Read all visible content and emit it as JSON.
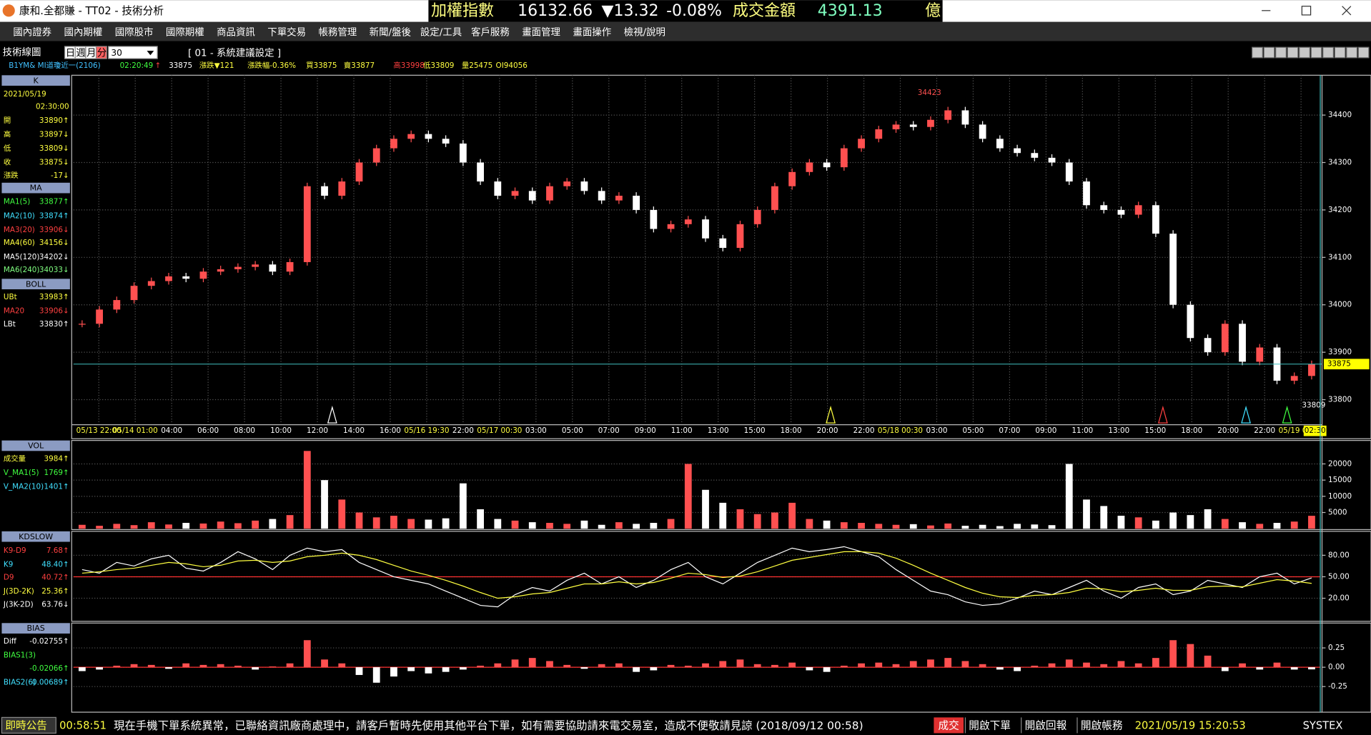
{
  "window": {
    "title": "康和.全都賺 - TT02 - 技術分析"
  },
  "ticker": {
    "name": "加權指數",
    "index": "16132.66",
    "change": "▼13.32",
    "pct": "-0.08%",
    "turnover_label": "成交金額",
    "turnover": "4391.13",
    "unit": "億"
  },
  "menu": [
    "國內證券",
    "國內期權",
    "國際股市",
    "國際期權",
    "商品資訊",
    "下單交易",
    "帳務管理",
    "新聞/盤後",
    "設定/工具",
    "客戶服務",
    "畫面管理",
    "畫面操作",
    "檢視/說明"
  ],
  "toolbar": {
    "title": "技術線圖",
    "periods": [
      "日",
      "週",
      "月",
      "分"
    ],
    "interval": "30",
    "setting": "[ 01 - 系統建議設定 ]"
  },
  "quote": [
    {
      "text": "B1YM&  MI道瓊近一(2106)",
      "color": "#40c0ff"
    },
    {
      "text": "02:20:49",
      "color": "#40ff40"
    },
    {
      "text": "↑",
      "color": "#ff4040"
    },
    {
      "text": "33875",
      "color": "#ffffff"
    },
    {
      "text": "漲跌▼121",
      "color": "#ffff40"
    },
    {
      "text": "漲跌幅-0.36%",
      "color": "#ffff40"
    },
    {
      "text": "買33875",
      "color": "#ffff40"
    },
    {
      "text": "賣33877",
      "color": "#ffff40"
    },
    {
      "text": "高33998",
      "color": "#ff4040"
    },
    {
      "text": "低33809",
      "color": "#ffff40"
    },
    {
      "text": "量25475",
      "color": "#ffff40"
    },
    {
      "text": "OI94056",
      "color": "#ffff40"
    }
  ],
  "panels": [
    {
      "title": "K",
      "rows": [
        {
          "label": "2021/05/19",
          "value": "",
          "color": "#ffff40"
        },
        {
          "label": "",
          "value": "02:30:00",
          "color": "#ffff40"
        },
        {
          "label": "開",
          "value": "33890↑",
          "color": "#ffff40"
        },
        {
          "label": "高",
          "value": "33897↓",
          "color": "#ffff40"
        },
        {
          "label": "低",
          "value": "33809↓",
          "color": "#ffff40"
        },
        {
          "label": "收",
          "value": "33875↓",
          "color": "#ffff40"
        },
        {
          "label": "漲跌",
          "value": "-17↓",
          "color": "#ffff40"
        }
      ]
    },
    {
      "title": "MA",
      "rows": [
        {
          "label": "MA1(5)",
          "value": "33877↑",
          "color": "#40ff40"
        },
        {
          "label": "MA2(10)",
          "value": "33874↑",
          "color": "#40e0ff"
        },
        {
          "label": "MA3(20)",
          "value": "33906↓",
          "color": "#ff4040"
        },
        {
          "label": "MA4(60)",
          "value": "34156↓",
          "color": "#ffff40"
        },
        {
          "label": "MA5(120)",
          "value": "34202↓",
          "color": "#ffffff"
        },
        {
          "label": "MA6(240)",
          "value": "34033↓",
          "color": "#80ff80"
        }
      ]
    },
    {
      "title": "BOLL",
      "rows": [
        {
          "label": "UBt",
          "value": "33983↑",
          "color": "#ffff40"
        },
        {
          "label": "MA20",
          "value": "33906↓",
          "color": "#ff4040"
        },
        {
          "label": "LBt",
          "value": "33830↑",
          "color": "#ffffff"
        }
      ]
    },
    {
      "title": "VOL",
      "rows": [
        {
          "label": "成交量",
          "value": "3984↑",
          "color": "#ffff40"
        },
        {
          "label": "V_MA1(5)",
          "value": "1769↑",
          "color": "#40ff40"
        },
        {
          "label": "V_MA2(10)",
          "value": "1401↑",
          "color": "#40e0ff"
        }
      ]
    },
    {
      "title": "KDSLOW",
      "rows": [
        {
          "label": "K9-D9",
          "value": "7.68↑",
          "color": "#ff4040"
        },
        {
          "label": "K9",
          "value": "48.40↑",
          "color": "#40e0ff"
        },
        {
          "label": "D9",
          "value": "40.72↑",
          "color": "#ff4040"
        },
        {
          "label": "J(3D-2K)",
          "value": "25.36↑",
          "color": "#ffff40"
        },
        {
          "label": "J(3K-2D)",
          "value": "63.76↓",
          "color": "#ffffff"
        }
      ]
    },
    {
      "title": "BIAS",
      "rows": [
        {
          "label": "Diff",
          "value": "-0.02755↑",
          "color": "#ffffff"
        },
        {
          "label": "BIAS1(3)",
          "value": "",
          "color": "#40ff40"
        },
        {
          "label": "",
          "value": "-0.02066↑",
          "color": "#40ff40"
        },
        {
          "label": "BIAS2(6)",
          "value": "0.00689↑",
          "color": "#40e0ff"
        }
      ]
    }
  ],
  "price_chart": {
    "ylim": [
      33749,
      34484
    ],
    "yticks": [
      33800,
      33900,
      34000,
      34100,
      34200,
      34300,
      34400
    ],
    "x_labels": [
      "05/13 22:00",
      "05/14 01:00",
      "04:00",
      "06:00",
      "08:00",
      "10:00",
      "12:00",
      "14:00",
      "16:00",
      "05/16 19:30",
      "22:00",
      "05/17 00:30",
      "03:00",
      "05:00",
      "07:00",
      "09:00",
      "11:00",
      "13:00",
      "15:00",
      "18:00",
      "20:00",
      "22:00",
      "05/18 00:30",
      "03:00",
      "05:00",
      "07:00",
      "09:00",
      "11:00",
      "13:00",
      "15:00",
      "18:00",
      "20:00",
      "22:00",
      "05/19 00:30"
    ],
    "closes": [
      33960,
      33990,
      34010,
      34040,
      34050,
      34060,
      34055,
      34070,
      34075,
      34080,
      34085,
      34070,
      34090,
      34250,
      34230,
      34260,
      34300,
      34330,
      34350,
      34360,
      34350,
      34340,
      34300,
      34260,
      34230,
      34240,
      34220,
      34250,
      34260,
      34240,
      34220,
      34230,
      34200,
      34160,
      34170,
      34180,
      34140,
      34120,
      34170,
      34200,
      34250,
      34280,
      34300,
      34290,
      34330,
      34350,
      34370,
      34380,
      34375,
      34390,
      34410,
      34380,
      34350,
      34330,
      34320,
      34310,
      34300,
      34260,
      34210,
      34200,
      34190,
      34210,
      34150,
      34000,
      33930,
      33900,
      33960,
      33880,
      33910,
      33840,
      33850,
      33875
    ],
    "high_label": "34423",
    "low_label": "33809",
    "last_price": "33875",
    "last_time": "02:30"
  },
  "volume_chart": {
    "ylim": [
      0,
      26700
    ],
    "yticks": [
      5000,
      10000,
      15000,
      20000
    ],
    "values": [
      1200,
      900,
      1500,
      1100,
      2000,
      1300,
      1800,
      1600,
      2200,
      1700,
      2500,
      3000,
      4200,
      24000,
      15000,
      9000,
      5000,
      3500,
      4000,
      3000,
      2800,
      3200,
      14000,
      6000,
      3000,
      2500,
      2000,
      1800,
      1500,
      2500,
      1200,
      2000,
      1500,
      1800,
      3000,
      20000,
      12000,
      8000,
      6000,
      4500,
      5000,
      8000,
      3000,
      2500,
      2000,
      1800,
      1500,
      1200,
      1400,
      1000,
      1600,
      900,
      1200,
      800,
      1500,
      1300,
      1100,
      20000,
      9000,
      7000,
      4000,
      3500,
      2500,
      5000,
      4200,
      6000,
      3000,
      2000,
      1500,
      1800,
      2200,
      3984
    ]
  },
  "kd_chart": {
    "ylim": [
      -11,
      111
    ],
    "yticks": [
      {
        "value": 20,
        "label": "20.00"
      },
      {
        "value": 50,
        "label": "50.00"
      },
      {
        "value": 80,
        "label": "80.00"
      }
    ],
    "k": [
      60,
      55,
      70,
      65,
      75,
      80,
      62,
      58,
      70,
      85,
      75,
      60,
      80,
      90,
      85,
      88,
      70,
      60,
      50,
      45,
      40,
      30,
      20,
      10,
      8,
      25,
      35,
      30,
      45,
      55,
      40,
      50,
      35,
      45,
      60,
      70,
      50,
      40,
      55,
      70,
      80,
      90,
      85,
      88,
      92,
      85,
      78,
      60,
      45,
      30,
      25,
      15,
      10,
      12,
      20,
      30,
      25,
      35,
      45,
      30,
      20,
      35,
      40,
      25,
      30,
      45,
      40,
      35,
      50,
      55,
      40,
      48.4
    ],
    "d": [
      55,
      57,
      60,
      62,
      66,
      70,
      68,
      64,
      66,
      72,
      73,
      70,
      72,
      78,
      80,
      83,
      80,
      74,
      66,
      58,
      52,
      45,
      37,
      28,
      20,
      22,
      26,
      28,
      34,
      40,
      40,
      43,
      40,
      42,
      48,
      55,
      53,
      49,
      51,
      57,
      65,
      73,
      77,
      81,
      85,
      85,
      83,
      76,
      66,
      55,
      45,
      35,
      27,
      22,
      21,
      24,
      25,
      28,
      34,
      33,
      29,
      31,
      34,
      31,
      31,
      36,
      37,
      36,
      41,
      46,
      44,
      40.72
    ]
  },
  "bias_chart": {
    "ylim": [
      -0.57,
      0.56
    ],
    "yticks": [
      -0.25,
      {
        "value": 0,
        "label": "0.00"
      },
      0.25
    ],
    "values": [
      -0.05,
      -0.03,
      0.02,
      0.04,
      0.03,
      -0.02,
      0.05,
      0.03,
      0.04,
      0.02,
      -0.03,
      0.01,
      0.05,
      0.35,
      0.1,
      0.05,
      -0.1,
      -0.2,
      -0.12,
      -0.05,
      -0.08,
      -0.06,
      -0.03,
      0.02,
      0.05,
      0.1,
      0.12,
      0.08,
      0.03,
      -0.02,
      0.04,
      0.05,
      -0.06,
      -0.04,
      0.03,
      0.02,
      0.05,
      0.08,
      0.1,
      0.04,
      0.03,
      0.06,
      -0.04,
      -0.06,
      0.02,
      0.05,
      0.06,
      0.04,
      0.08,
      0.1,
      0.12,
      0.08,
      0.04,
      -0.03,
      -0.05,
      0.02,
      0.05,
      0.1,
      0.06,
      0.04,
      0.08,
      0.05,
      0.12,
      0.35,
      0.3,
      0.15,
      -0.05,
      0.05,
      -0.03,
      0.06,
      -0.03,
      -0.02755
    ]
  },
  "status": {
    "label": "即時公告",
    "time": "00:58:51",
    "message": "現在手機下單系統異常，已聯絡資訊廠商處理中，請客戶暫時先使用其他平台下單，如有需要協助請來電交易室，造成不便敬請見諒 (2018/09/12 00:58)",
    "deal": "成交",
    "buttons": [
      "開啟下單",
      "開啟回報",
      "開啟帳務"
    ],
    "datetime": "2021/05/19 15:20:53",
    "brand": "SYSTEX"
  }
}
